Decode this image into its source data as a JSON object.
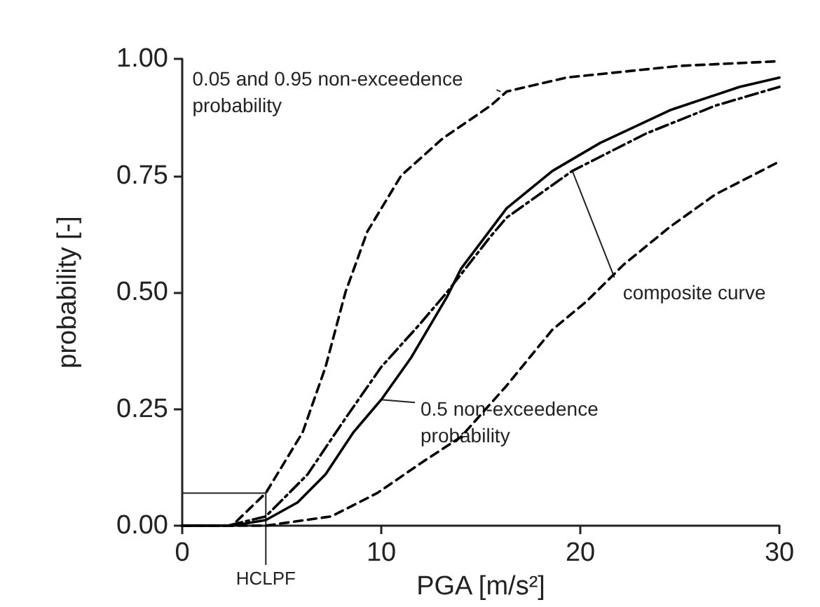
{
  "chart_data": {
    "type": "line",
    "xlabel": "PGA [m/s²]",
    "ylabel": "probability [-]",
    "xlim": [
      0,
      30
    ],
    "xticks": [
      0,
      10,
      20,
      30
    ],
    "ylim": [
      0,
      1
    ],
    "yticks": [
      {
        "value": 0,
        "label": "0.00"
      },
      {
        "value": 0.25,
        "label": "0.25"
      },
      {
        "value": 0.5,
        "label": "0.50"
      },
      {
        "value": 0.75,
        "label": "0.75"
      },
      {
        "value": 1,
        "label": "1.00"
      }
    ],
    "grid": false,
    "marker": "none",
    "series": [
      {
        "color": "#000000",
        "line_style": "dashed",
        "x": [
          0,
          2.5,
          4.2,
          6.05,
          7.2,
          8.2,
          9.3,
          11,
          13.1,
          15.5,
          16.3,
          19.3,
          25,
          30
        ],
        "values": [
          0,
          0,
          0.07,
          0.2,
          0.34,
          0.5,
          0.63,
          0.75,
          0.83,
          0.9,
          0.93,
          0.96,
          0.985,
          0.995
        ]
      },
      {
        "color": "#000000",
        "line_style": "solid",
        "x": [
          0,
          2.5,
          4.2,
          5.8,
          7.2,
          8.6,
          10,
          11.5,
          13.3,
          14,
          16.3,
          18.6,
          21,
          24.5,
          28,
          30
        ],
        "values": [
          0,
          0,
          0.012,
          0.05,
          0.11,
          0.2,
          0.27,
          0.36,
          0.49,
          0.55,
          0.68,
          0.76,
          0.82,
          0.89,
          0.94,
          0.96
        ]
      },
      {
        "color": "#000000",
        "line_style": "dashdot",
        "x": [
          0,
          2.3,
          4.2,
          6.3,
          8.2,
          10,
          11.9,
          13.3,
          15.5,
          16.3,
          19.6,
          23.3,
          26.8,
          30
        ],
        "values": [
          0,
          0,
          0.02,
          0.11,
          0.23,
          0.34,
          0.43,
          0.5,
          0.62,
          0.66,
          0.76,
          0.84,
          0.9,
          0.94
        ]
      },
      {
        "color": "#000000",
        "line_style": "dashed",
        "x": [
          0,
          4.2,
          7.5,
          9.8,
          12.2,
          14,
          16.3,
          18.6,
          20.3,
          22.2,
          24.5,
          26.8,
          30
        ],
        "values": [
          0,
          0,
          0.02,
          0.07,
          0.14,
          0.19,
          0.3,
          0.42,
          0.48,
          0.56,
          0.64,
          0.71,
          0.78
        ]
      }
    ],
    "ref_lines": [
      {
        "axis": "x",
        "value": 4.2,
        "label": "HCLPF"
      },
      {
        "axis": "y",
        "value": 0.07
      }
    ],
    "annotations": [
      {
        "text": "0.05 and 0.95 non-exceedence probability",
        "x": 16,
        "y": 0.93
      },
      {
        "text": "composite curve",
        "x": 19.6,
        "y": 0.76
      },
      {
        "text": "0.5 non-exceedence probability",
        "x": 10,
        "y": 0.27
      }
    ]
  }
}
